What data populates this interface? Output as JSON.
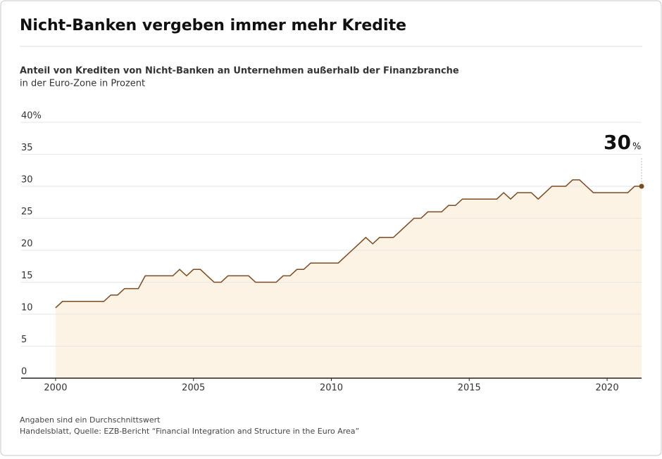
{
  "chart_data": {
    "type": "area",
    "title": "Nicht-Banken vergeben immer mehr Kredite",
    "subtitle": "Anteil von Krediten von Nicht-Banken an Unternehmen außerhalb der Finanzbranche",
    "subtitle2": "in der Euro-Zone in Prozent",
    "end_label": "30",
    "end_label_unit": "%",
    "footnote": "Angaben sind ein Durchschnittswert",
    "source": "Handelsblatt, Quelle: EZB-Bericht “Financial Integration and Structure in the Euro Area”",
    "color": "#7a4a22",
    "fill": "#fdf3e4",
    "grid": true,
    "xlim": [
      1998.75,
      2021.25
    ],
    "xticks": [
      2000,
      2005,
      2010,
      2015,
      2020
    ],
    "ylim": [
      0,
      40
    ],
    "yticks": [
      0,
      5,
      10,
      15,
      20,
      25,
      30,
      35,
      {
        "value": 40,
        "label": "40%"
      }
    ],
    "x": [
      2000,
      2000.25,
      2000.5,
      2000.75,
      2001,
      2001.25,
      2001.5,
      2001.75,
      2002,
      2002.25,
      2002.5,
      2002.75,
      2003,
      2003.25,
      2003.5,
      2003.75,
      2004,
      2004.25,
      2004.5,
      2004.75,
      2005,
      2005.25,
      2005.5,
      2005.75,
      2006,
      2006.25,
      2006.5,
      2006.75,
      2007,
      2007.25,
      2007.5,
      2007.75,
      2008,
      2008.25,
      2008.5,
      2008.75,
      2009,
      2009.25,
      2009.5,
      2009.75,
      2010,
      2010.25,
      2010.5,
      2010.75,
      2011,
      2011.25,
      2011.5,
      2011.75,
      2012,
      2012.25,
      2012.5,
      2012.75,
      2013,
      2013.25,
      2013.5,
      2013.75,
      2014,
      2014.25,
      2014.5,
      2014.75,
      2015,
      2015.25,
      2015.5,
      2015.75,
      2016,
      2016.25,
      2016.5,
      2016.75,
      2017,
      2017.25,
      2017.5,
      2017.75,
      2018,
      2018.25,
      2018.5,
      2018.75,
      2019,
      2019.25,
      2019.5,
      2019.75,
      2020,
      2020.25,
      2020.5,
      2020.75,
      2021,
      2021.25
    ],
    "values": [
      11,
      12,
      12,
      12,
      12,
      12,
      12,
      12,
      13,
      13,
      14,
      14,
      14,
      16,
      16,
      16,
      16,
      16,
      17,
      16,
      17,
      17,
      16,
      15,
      15,
      16,
      16,
      16,
      16,
      15,
      15,
      15,
      15,
      16,
      16,
      17,
      17,
      18,
      18,
      18,
      18,
      18,
      19,
      20,
      21,
      22,
      21,
      22,
      22,
      22,
      23,
      24,
      25,
      25,
      26,
      26,
      26,
      27,
      27,
      28,
      28,
      28,
      28,
      28,
      28,
      29,
      28,
      29,
      29,
      29,
      28,
      29,
      30,
      30,
      30,
      31,
      31,
      30,
      29,
      29,
      29,
      29,
      29,
      29,
      30,
      30
    ]
  }
}
